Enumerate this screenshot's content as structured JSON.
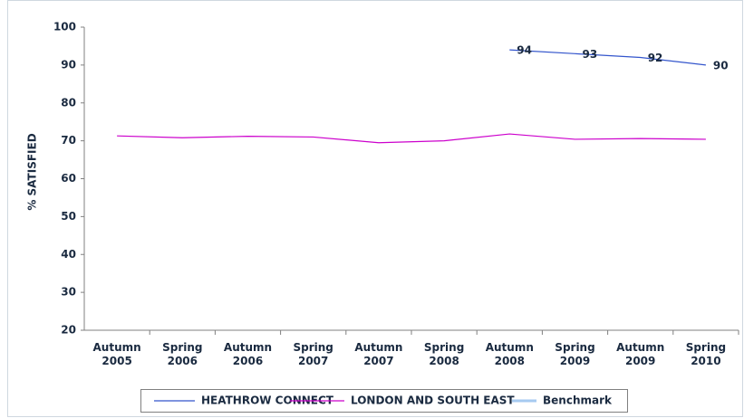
{
  "chart_data": {
    "type": "line",
    "y_axis_label": "% SATISFIED",
    "categories": [
      "Autumn 2005",
      "Spring 2006",
      "Autumn 2006",
      "Spring 2007",
      "Autumn 2007",
      "Spring 2008",
      "Autumn 2008",
      "Spring 2009",
      "Autumn 2009",
      "Spring 2010"
    ],
    "series": [
      {
        "name": "HEATHROW CONNECT",
        "color": "#3355cc",
        "values": [
          null,
          null,
          null,
          null,
          null,
          null,
          94,
          93,
          92,
          90
        ]
      },
      {
        "name": "LONDON AND SOUTH EAST",
        "color": "#cc00cc",
        "values": [
          71.3,
          70.8,
          71.2,
          71.0,
          69.5,
          70.0,
          71.8,
          70.4,
          70.6,
          70.4
        ]
      },
      {
        "name": "Benchmark",
        "color": "#a6caf0",
        "values": [
          null,
          null,
          null,
          null,
          null,
          null,
          null,
          null,
          null,
          null
        ]
      }
    ],
    "data_labels_series": [
      0
    ],
    "ylim": [
      20,
      100
    ],
    "yticks": [
      20,
      30,
      40,
      50,
      60,
      70,
      80,
      90,
      100
    ],
    "grid": false,
    "legend": "bottom"
  }
}
